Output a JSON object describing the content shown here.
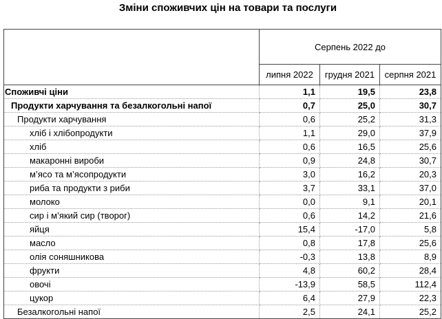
{
  "title": "Зміни споживчих цін на товари та послуги",
  "header": {
    "group": "Серпень 2022 до",
    "columns": [
      "липня 2022",
      "грудня 2021",
      "серпня 2021"
    ]
  },
  "rows": [
    {
      "label": "Споживчі ціни",
      "level": 0,
      "bold": true,
      "values": [
        "1,1",
        "19,5",
        "23,8"
      ]
    },
    {
      "label": "Продукти харчування та безалкогольні напої",
      "level": 1,
      "bold": true,
      "values": [
        "0,7",
        "25,0",
        "30,7"
      ]
    },
    {
      "label": "Продукти харчування",
      "level": 2,
      "bold": false,
      "values": [
        "0,6",
        "25,2",
        "31,3"
      ]
    },
    {
      "label": "хліб і хлібопродукти",
      "level": 3,
      "bold": false,
      "values": [
        "1,1",
        "29,0",
        "37,9"
      ]
    },
    {
      "label": "хліб",
      "level": 3,
      "bold": false,
      "values": [
        "0,6",
        "16,5",
        "25,6"
      ]
    },
    {
      "label": "макаронні вироби",
      "level": 3,
      "bold": false,
      "values": [
        "0,9",
        "24,8",
        "30,7"
      ]
    },
    {
      "label": "м’ясо та м’ясопродукти",
      "level": 3,
      "bold": false,
      "values": [
        "3,0",
        "16,2",
        "20,3"
      ]
    },
    {
      "label": "риба та продукти з риби",
      "level": 3,
      "bold": false,
      "values": [
        "3,7",
        "33,1",
        "37,0"
      ]
    },
    {
      "label": "молоко",
      "level": 3,
      "bold": false,
      "values": [
        "0,0",
        "9,1",
        "20,1"
      ]
    },
    {
      "label": "сир і м’який сир (творог)",
      "level": 3,
      "bold": false,
      "values": [
        "0,6",
        "14,2",
        "21,6"
      ]
    },
    {
      "label": "яйця",
      "level": 3,
      "bold": false,
      "values": [
        "15,4",
        "-17,0",
        "5,8"
      ]
    },
    {
      "label": "масло",
      "level": 3,
      "bold": false,
      "values": [
        "0,8",
        "17,8",
        "25,6"
      ]
    },
    {
      "label": "олія соняшникова",
      "level": 3,
      "bold": false,
      "values": [
        "-0,3",
        "13,8",
        "8,9"
      ]
    },
    {
      "label": "фрукти",
      "level": 3,
      "bold": false,
      "values": [
        "4,8",
        "60,2",
        "28,4"
      ]
    },
    {
      "label": "овочі",
      "level": 3,
      "bold": false,
      "values": [
        "-13,9",
        "58,5",
        "112,4"
      ]
    },
    {
      "label": "цукор",
      "level": 3,
      "bold": false,
      "values": [
        "6,4",
        "27,9",
        "22,3"
      ]
    },
    {
      "label": "Безалкогольні напої",
      "level": 2,
      "bold": false,
      "values": [
        "2,5",
        "24,1",
        "25,2"
      ]
    }
  ]
}
